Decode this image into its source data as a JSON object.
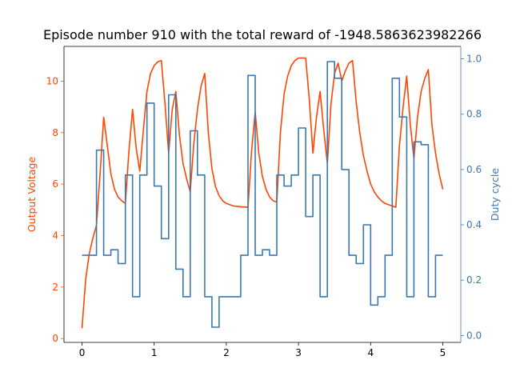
{
  "chart_data": {
    "type": "line",
    "title": "Episode number 910 with the total reward of -1948.5863623982266",
    "xlabel": "",
    "x_ticks": [
      0,
      1,
      2,
      3,
      4,
      5
    ],
    "xlim": [
      -0.25,
      5.25
    ],
    "left_axis": {
      "label": "Output Voltage",
      "color": "#ff4500",
      "ticks": [
        0,
        2,
        4,
        6,
        8,
        10
      ],
      "ylim": [
        -0.15,
        11.35
      ]
    },
    "right_axis": {
      "label": "Duty cycle",
      "color": "#3b78b0",
      "ticks": [
        0.0,
        0.2,
        0.4,
        0.6,
        0.8,
        1.0
      ],
      "ylim": [
        -0.025,
        1.045
      ]
    },
    "series": [
      {
        "axis": "left",
        "color": "#ff4500",
        "x": [
          0.0,
          0.05,
          0.1,
          0.15,
          0.2,
          0.25,
          0.3,
          0.35,
          0.4,
          0.45,
          0.5,
          0.55,
          0.6,
          0.65,
          0.7,
          0.75,
          0.8,
          0.85,
          0.9,
          0.95,
          1.0,
          1.05,
          1.1,
          1.15,
          1.2,
          1.25,
          1.3,
          1.35,
          1.4,
          1.45,
          1.5,
          1.55,
          1.6,
          1.65,
          1.7,
          1.75,
          1.8,
          1.85,
          1.9,
          1.95,
          2.0,
          2.1,
          2.2,
          2.3,
          2.35,
          2.4,
          2.45,
          2.5,
          2.55,
          2.6,
          2.65,
          2.7,
          2.75,
          2.8,
          2.85,
          2.9,
          2.95,
          3.0,
          3.05,
          3.1,
          3.15,
          3.2,
          3.25,
          3.3,
          3.35,
          3.4,
          3.45,
          3.5,
          3.55,
          3.6,
          3.65,
          3.7,
          3.75,
          3.8,
          3.85,
          3.9,
          3.95,
          4.0,
          4.05,
          4.1,
          4.15,
          4.2,
          4.25,
          4.3,
          4.35,
          4.4,
          4.45,
          4.5,
          4.55,
          4.6,
          4.65,
          4.7,
          4.75,
          4.8,
          4.85,
          4.9,
          4.95,
          5.0
        ],
        "values": [
          0.4,
          2.3,
          3.3,
          3.9,
          4.4,
          6.4,
          8.6,
          7.5,
          6.4,
          5.8,
          5.5,
          5.35,
          5.25,
          7.3,
          8.9,
          7.4,
          6.5,
          8.1,
          9.6,
          10.3,
          10.6,
          10.75,
          10.8,
          9.1,
          7.2,
          8.9,
          9.6,
          7.9,
          6.8,
          6.2,
          5.7,
          7.6,
          8.9,
          9.8,
          10.3,
          8.0,
          6.6,
          5.9,
          5.55,
          5.35,
          5.25,
          5.15,
          5.12,
          5.1,
          7.3,
          8.8,
          7.2,
          6.3,
          5.8,
          5.5,
          5.35,
          5.3,
          8.0,
          9.5,
          10.2,
          10.6,
          10.8,
          10.9,
          10.9,
          10.9,
          9.3,
          7.2,
          8.6,
          9.6,
          8.1,
          6.8,
          9.1,
          10.3,
          10.7,
          10.0,
          10.4,
          10.7,
          10.8,
          9.2,
          8.0,
          7.1,
          6.5,
          6.0,
          5.7,
          5.5,
          5.35,
          5.25,
          5.2,
          5.15,
          5.1,
          7.5,
          9.0,
          10.2,
          8.3,
          7.0,
          8.6,
          9.6,
          10.1,
          10.45,
          8.3,
          7.2,
          6.4,
          5.8
        ]
      },
      {
        "axis": "right",
        "color": "#3b78b0",
        "step": true,
        "x": [
          0.0,
          0.2,
          0.3,
          0.4,
          0.5,
          0.6,
          0.7,
          0.8,
          0.9,
          1.0,
          1.1,
          1.2,
          1.3,
          1.4,
          1.5,
          1.6,
          1.7,
          1.8,
          1.9,
          2.0,
          2.1,
          2.2,
          2.3,
          2.4,
          2.5,
          2.6,
          2.7,
          2.8,
          2.9,
          3.0,
          3.1,
          3.2,
          3.3,
          3.4,
          3.5,
          3.6,
          3.7,
          3.8,
          3.9,
          4.0,
          4.1,
          4.2,
          4.3,
          4.4,
          4.5,
          4.6,
          4.7,
          4.8,
          4.9,
          5.0
        ],
        "values": [
          0.29,
          0.67,
          0.29,
          0.31,
          0.26,
          0.58,
          0.14,
          0.58,
          0.84,
          0.54,
          0.35,
          0.87,
          0.24,
          0.14,
          0.74,
          0.58,
          0.14,
          0.03,
          0.14,
          0.14,
          0.14,
          0.29,
          0.94,
          0.29,
          0.31,
          0.29,
          0.58,
          0.54,
          0.58,
          0.75,
          0.43,
          0.58,
          0.14,
          0.99,
          0.93,
          0.6,
          0.29,
          0.26,
          0.4,
          0.11,
          0.14,
          0.29,
          0.93,
          0.79,
          0.14,
          0.7,
          0.69,
          0.14,
          0.29,
          0.29
        ]
      }
    ],
    "grid": false,
    "legend": "none"
  }
}
